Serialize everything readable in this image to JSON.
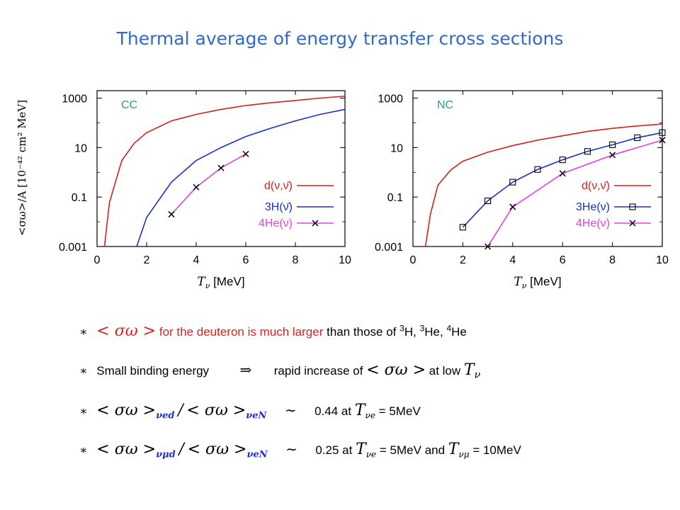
{
  "slide": {
    "title": "Thermal average of energy transfer cross sections"
  },
  "shared_ylabel": "<σω>/A  [10⁻⁴² cm² MeV]",
  "chart_data": [
    {
      "type": "line",
      "panel_label": "CC",
      "xlabel": "T_ν [MeV]",
      "ylabel": "<σω>/A [10^-42 cm^2 MeV]",
      "yscale": "log",
      "xlim": [
        0,
        10
      ],
      "ylim": [
        0.001,
        2000
      ],
      "xticks": [
        "0",
        "2",
        "4",
        "6",
        "8",
        "10"
      ],
      "yticks": [
        "0.001",
        "0.1",
        "10",
        "1000"
      ],
      "legend_placement": "lower-right",
      "series": [
        {
          "name": "d(ν,ν̄)",
          "color": "#d42020",
          "marker": "none",
          "x": [
            0.3,
            0.5,
            1,
            1.5,
            2,
            3,
            4,
            5,
            6,
            7,
            8,
            9,
            10
          ],
          "y": [
            0.001,
            0.06,
            3,
            15,
            40,
            120,
            220,
            350,
            500,
            650,
            800,
            1000,
            1200
          ]
        },
        {
          "name": "3H(ν̄)",
          "color": "#1a2fc8",
          "marker": "none",
          "x": [
            1.6,
            2,
            3,
            4,
            5,
            6,
            7,
            8,
            9,
            10
          ],
          "y": [
            0.001,
            0.015,
            0.4,
            3,
            10,
            28,
            60,
            120,
            220,
            350
          ]
        },
        {
          "name": "4He(ν)",
          "color": "#e040e0",
          "marker": "x",
          "x": [
            3,
            4,
            5,
            6
          ],
          "y": [
            0.02,
            0.25,
            1.5,
            5.5
          ]
        }
      ]
    },
    {
      "type": "line",
      "panel_label": "NC",
      "xlabel": "T_ν [MeV]",
      "yscale": "log",
      "xlim": [
        0,
        10
      ],
      "ylim": [
        0.001,
        2000
      ],
      "xticks": [
        "0",
        "2",
        "4",
        "6",
        "8",
        "10"
      ],
      "yticks": [
        "0.001",
        "0.1",
        "10",
        "1000"
      ],
      "legend_placement": "lower-right",
      "series": [
        {
          "name": "d(ν,ν̄)",
          "color": "#d42020",
          "marker": "none",
          "x": [
            0.5,
            0.7,
            1,
            1.5,
            2,
            3,
            4,
            5,
            6,
            7,
            8,
            9,
            10
          ],
          "y": [
            0.001,
            0.02,
            0.3,
            1.2,
            2.8,
            6.5,
            12,
            20,
            30,
            45,
            60,
            75,
            90
          ]
        },
        {
          "name": "3He(ν)",
          "color": "#1a2fc8",
          "marker": "square",
          "x": [
            2,
            3,
            4,
            5,
            6,
            7,
            8,
            9,
            10
          ],
          "y": [
            0.006,
            0.07,
            0.4,
            1.3,
            3.2,
            7,
            13,
            25,
            40
          ]
        },
        {
          "name": "4He(ν)",
          "color": "#e040e0",
          "marker": "x",
          "x": [
            3,
            4,
            6,
            8,
            10
          ],
          "y": [
            0.001,
            0.04,
            0.9,
            5,
            20
          ]
        }
      ]
    }
  ],
  "bullets": {
    "b1": {
      "star": "∗",
      "lhs": "< σω >",
      "red_text": "for the deuteron is much larger",
      "rest": "than those of",
      "iso1_mass": "3",
      "iso1": "H,",
      "iso2_mass": "3",
      "iso2": "He,",
      "iso3_mass": "4",
      "iso3": "He"
    },
    "b2": {
      "star": "∗",
      "text": "Small binding energy",
      "arrow": "⇒",
      "text2": "rapid increase of",
      "sym": "< σω >",
      "text3": "at low",
      "T": "T",
      "T_sub": "ν"
    },
    "b3": {
      "star": "∗",
      "num": "< σω >",
      "num_sub": "νed",
      "slash": "/",
      "den": "< σω >",
      "den_sub": "νeN",
      "sim": "∼",
      "value": "0.44",
      "at": "at",
      "T": "T",
      "T_sub": "νe",
      "eq": "= 5MeV"
    },
    "b4": {
      "star": "∗",
      "num": "< σω >",
      "num_sub": "νμd",
      "slash": "/",
      "den": "< σω >",
      "den_sub": "νeN",
      "sim": "∼",
      "value": "0.25",
      "at": "at",
      "T": "T",
      "T_sub": "νe",
      "eq": "= 5MeV and",
      "T2": "T",
      "T2_sub": "νμ",
      "eq2": "= 10MeV"
    }
  }
}
